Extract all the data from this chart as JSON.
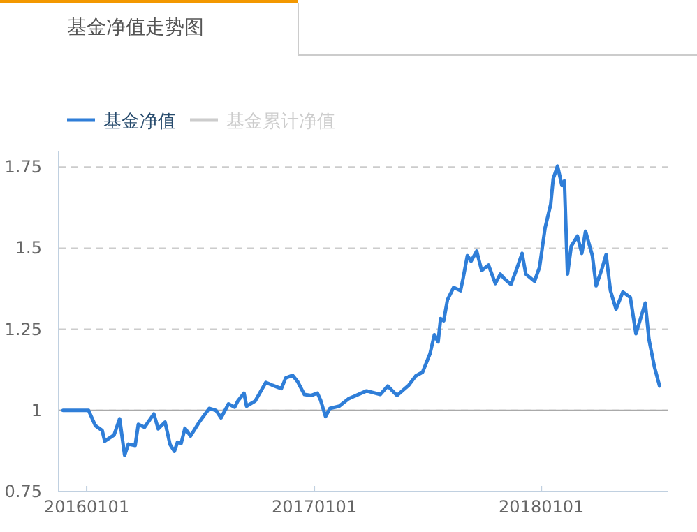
{
  "chart_data": {
    "type": "line",
    "title": "基金净值走势图",
    "x": [
      "2015-11-24",
      "2016-01-04",
      "2016-01-15",
      "2016-01-26",
      "2016-01-30",
      "2016-02-14",
      "2016-02-23",
      "2016-03-02",
      "2016-03-08",
      "2016-03-19",
      "2016-03-24",
      "2016-04-03",
      "2016-04-18",
      "2016-04-25",
      "2016-05-06",
      "2016-05-14",
      "2016-05-21",
      "2016-05-26",
      "2016-06-01",
      "2016-06-07",
      "2016-06-16",
      "2016-07-01",
      "2016-07-16",
      "2016-07-27",
      "2016-08-04",
      "2016-08-16",
      "2016-08-26",
      "2016-08-31",
      "2016-09-10",
      "2016-09-14",
      "2016-09-28",
      "2016-10-15",
      "2016-10-25",
      "2016-11-09",
      "2016-11-16",
      "2016-11-27",
      "2016-12-05",
      "2016-12-16",
      "2016-12-27",
      "2017-01-06",
      "2017-01-11",
      "2017-01-19",
      "2017-01-26",
      "2017-02-10",
      "2017-02-25",
      "2017-03-26",
      "2017-04-17",
      "2017-04-29",
      "2017-05-14",
      "2017-06-02",
      "2017-06-13",
      "2017-06-24",
      "2017-07-06",
      "2017-07-13",
      "2017-07-19",
      "2017-07-23",
      "2017-07-28",
      "2017-08-03",
      "2017-08-13",
      "2017-08-24",
      "2017-08-28",
      "2017-09-04",
      "2017-09-10",
      "2017-09-19",
      "2017-09-27",
      "2017-10-08",
      "2017-10-19",
      "2017-10-27",
      "2017-11-03",
      "2017-11-13",
      "2017-11-22",
      "2017-12-01",
      "2017-12-07",
      "2017-12-21",
      "2017-12-29",
      "2018-01-07",
      "2018-01-16",
      "2018-01-20",
      "2018-01-27",
      "2018-02-03",
      "2018-02-07",
      "2018-02-12",
      "2018-02-18",
      "2018-02-28",
      "2018-03-07",
      "2018-03-13",
      "2018-03-24",
      "2018-03-30",
      "2018-04-08",
      "2018-04-15",
      "2018-04-22",
      "2018-05-01",
      "2018-05-12",
      "2018-05-24",
      "2018-06-02",
      "2018-06-17",
      "2018-06-23",
      "2018-07-02",
      "2018-07-10"
    ],
    "series": [
      {
        "name": "基金净值",
        "color": "#2f7ed8",
        "values": [
          1.0,
          1.0,
          0.953,
          0.938,
          0.905,
          0.924,
          0.974,
          0.862,
          0.896,
          0.892,
          0.957,
          0.948,
          0.989,
          0.943,
          0.964,
          0.895,
          0.874,
          0.902,
          0.899,
          0.945,
          0.921,
          0.967,
          1.006,
          1.0,
          0.977,
          1.02,
          1.01,
          1.029,
          1.053,
          1.013,
          1.029,
          1.086,
          1.078,
          1.067,
          1.1,
          1.108,
          1.089,
          1.049,
          1.046,
          1.053,
          1.032,
          0.981,
          1.006,
          1.013,
          1.036,
          1.06,
          1.049,
          1.075,
          1.046,
          1.078,
          1.106,
          1.118,
          1.175,
          1.233,
          1.211,
          1.283,
          1.276,
          1.341,
          1.379,
          1.369,
          1.405,
          1.477,
          1.46,
          1.491,
          1.431,
          1.448,
          1.391,
          1.42,
          1.405,
          1.388,
          1.434,
          1.484,
          1.42,
          1.398,
          1.441,
          1.563,
          1.635,
          1.714,
          1.753,
          1.693,
          1.707,
          1.42,
          1.506,
          1.537,
          1.484,
          1.552,
          1.477,
          1.384,
          1.434,
          1.48,
          1.369,
          1.312,
          1.365,
          1.348,
          1.236,
          1.331,
          1.218,
          1.132,
          1.075
        ]
      },
      {
        "name": "基金累计净值",
        "color": "#cccccc",
        "values": [
          null,
          null,
          null,
          null,
          null,
          null,
          null,
          null,
          null,
          null,
          null,
          null,
          null,
          null,
          null,
          null,
          null,
          null,
          null,
          null,
          null,
          null,
          null,
          null,
          null,
          null,
          null,
          null,
          null,
          null,
          null,
          null,
          null,
          null,
          null,
          null,
          null,
          null,
          null,
          null,
          null,
          null,
          null,
          null,
          null,
          null,
          null,
          null,
          null,
          null,
          null,
          null,
          null,
          null,
          null,
          null,
          null,
          null,
          null,
          null,
          null,
          null,
          null,
          null,
          null,
          null,
          null,
          null,
          null,
          null,
          null,
          null,
          null,
          null,
          null,
          null,
          null,
          null,
          null,
          null,
          null,
          null,
          null,
          null,
          null,
          null,
          null,
          null,
          null,
          null,
          null,
          null,
          null,
          null,
          null,
          null,
          null,
          null,
          null
        ]
      }
    ],
    "xlim": [
      "2015-11-17",
      "2018-07-23"
    ],
    "xticks": [
      {
        "value": "2016-01-01",
        "label": "20160101"
      },
      {
        "value": "2017-01-01",
        "label": "20170101"
      },
      {
        "value": "2018-01-01",
        "label": "20180101"
      }
    ],
    "ylim": [
      0.75,
      1.8
    ],
    "yticks": [
      0.75,
      1,
      1.25,
      1.5,
      1.75
    ],
    "grid": "y",
    "ref_lines": [
      {
        "axis": "y",
        "value": 1,
        "color": "#aaaaaa"
      }
    ],
    "legend": "top left",
    "marker": "none",
    "line_style": "solid"
  }
}
